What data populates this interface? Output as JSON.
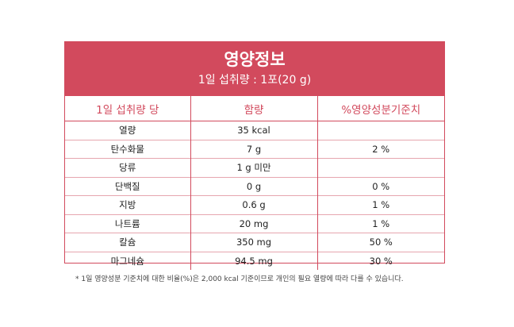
{
  "header": {
    "title": "영양정보",
    "subtitle": "1일 섭취량 : 1포(20 g)"
  },
  "columns": [
    "1일 섭취량 당",
    "함량",
    "%영양성분기준치"
  ],
  "rows": [
    {
      "name": "열량",
      "amount": "35 kcal",
      "percent": ""
    },
    {
      "name": "탄수화물",
      "amount": "7 g",
      "percent": "2 %"
    },
    {
      "name": "당류",
      "amount": "1 g 미만",
      "percent": ""
    },
    {
      "name": "단백질",
      "amount": "0 g",
      "percent": "0 %"
    },
    {
      "name": "지방",
      "amount": "0.6 g",
      "percent": "1 %"
    },
    {
      "name": "나트륨",
      "amount": "20 mg",
      "percent": "1 %"
    },
    {
      "name": "칼슘",
      "amount": "350 mg",
      "percent": "50 %"
    },
    {
      "name": "마그네슘",
      "amount": "94.5 mg",
      "percent": "30 %"
    }
  ],
  "footnote": "* 1일 영양성분 기준치에 대한 비율(%)은 2,000 kcal 기준이므로 개인의 필요 열량에 따라 다를 수 있습니다.",
  "colors": {
    "accent": "#d24a5d",
    "row_divider": "#e6a6af"
  }
}
